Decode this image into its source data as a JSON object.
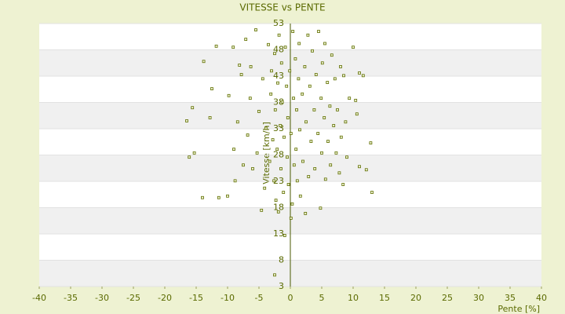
{
  "chart_data": {
    "type": "scatter",
    "title": "VITESSE vs PENTE",
    "x_label": "Pente [%]",
    "y_label": "Vitesse [km/h]",
    "color": "#5f6e00",
    "xlim": [
      -40,
      40
    ],
    "xticks": [
      -40,
      -35,
      -30,
      -25,
      -20,
      -15,
      -10,
      -5,
      0,
      5,
      10,
      15,
      20,
      25,
      30,
      35,
      40
    ],
    "ylim": [
      3,
      53
    ],
    "yticks": [
      3,
      8,
      13,
      18,
      23,
      28,
      33,
      38,
      43,
      48,
      53
    ],
    "x": [
      -16.5,
      -15.6,
      -16.1,
      -15.3,
      -14,
      -13.8,
      -12.8,
      -12.5,
      -11.8,
      -11.4,
      -10,
      -9.8,
      -9.1,
      -9,
      -8.8,
      -8.4,
      -8.1,
      -7.8,
      -7.5,
      -7.1,
      -6.8,
      -6.4,
      -6.3,
      -6,
      -5.5,
      -5.3,
      -5,
      -4.6,
      -4.4,
      -4.1,
      -3.9,
      -3.5,
      -3.3,
      -3.1,
      -3,
      -2.8,
      -2.6,
      -2.5,
      -2.4,
      -2.3,
      -2.1,
      -2,
      -1.9,
      -1.8,
      -1.6,
      -1.5,
      -1.4,
      -1.3,
      -1.1,
      -1,
      -0.9,
      -0.8,
      -0.6,
      -0.5,
      -0.4,
      -0.3,
      -0.1,
      0.1,
      0.3,
      0.4,
      0.5,
      0.6,
      0.8,
      0.9,
      1,
      1.1,
      1.3,
      1.4,
      1.5,
      1.6,
      1.9,
      2,
      2.3,
      2.4,
      2.5,
      2.8,
      2.9,
      3.1,
      3.3,
      3.5,
      3.8,
      3.9,
      4.1,
      4.4,
      4.5,
      4.8,
      4.9,
      5,
      5.1,
      5.4,
      5.5,
      5.6,
      5.9,
      6,
      6.3,
      6.4,
      6.6,
      6.9,
      7.1,
      7.3,
      7.5,
      7.8,
      8,
      8.1,
      8.4,
      8.5,
      8.8,
      9,
      9.4,
      10,
      10.4,
      10.6,
      11,
      11,
      11.6,
      12.1,
      12.8,
      13,
      -2.5,
      0.1
    ],
    "values": [
      34.5,
      37,
      27.6,
      28.4,
      19.9,
      45.8,
      35.1,
      40.6,
      48.7,
      19.9,
      20.2,
      39.3,
      48.5,
      29.1,
      23.1,
      34.3,
      45.1,
      43.3,
      26.1,
      50,
      31.8,
      38.8,
      44.8,
      25.4,
      51.8,
      28.4,
      36.3,
      17.5,
      42.5,
      21.7,
      33.1,
      49,
      26.8,
      39.6,
      44,
      30.9,
      23.1,
      47.3,
      36.6,
      19.4,
      29.1,
      41.7,
      17.2,
      50.8,
      33.6,
      25.4,
      45.5,
      38.1,
      20.9,
      31.4,
      12.7,
      48.5,
      41.1,
      27.6,
      35.1,
      22.4,
      44,
      32.1,
      18.7,
      51.5,
      38.8,
      26.1,
      46.3,
      29.1,
      36.6,
      23.1,
      42.5,
      49.2,
      32.8,
      20.2,
      39.6,
      26.8,
      44.8,
      16.9,
      34.3,
      50.8,
      23.9,
      41.1,
      30.6,
      47.8,
      36.6,
      25.4,
      43.3,
      32.1,
      51.5,
      17.9,
      38.8,
      28.4,
      45.5,
      35.1,
      49.2,
      23.4,
      41.8,
      30.6,
      37.3,
      26.1,
      47,
      33.6,
      42.5,
      28.4,
      36.6,
      24.6,
      44.8,
      31.4,
      22.4,
      43.1,
      34.3,
      27.6,
      38.8,
      48.5,
      38.4,
      35.8,
      43.6,
      25.8,
      43.1,
      25.2,
      30.3,
      20.9,
      5.2,
      16
    ]
  }
}
